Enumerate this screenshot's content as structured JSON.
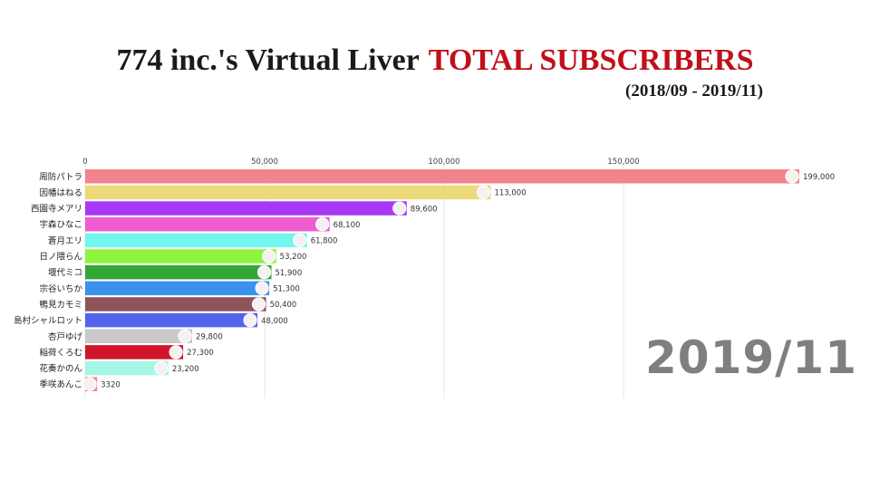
{
  "header": {
    "title_main": "774 inc.'s Virtual Liver",
    "title_accent": "TOTAL SUBSCRIBERS",
    "date_range": "(2018/09 - 2019/11)"
  },
  "period_label": "2019/11",
  "colors": {
    "accent": "#c0101a",
    "grid": "#e6e6e6",
    "period": "#7f7f7f"
  },
  "chart_data": {
    "type": "bar",
    "orientation": "horizontal",
    "xlim": [
      0,
      199000
    ],
    "ticks": [
      {
        "value": 0,
        "label": "0"
      },
      {
        "value": 50000,
        "label": "50,000"
      },
      {
        "value": 100000,
        "label": "100,000"
      },
      {
        "value": 150000,
        "label": "150,000"
      }
    ],
    "grid": true,
    "bars": [
      {
        "name": "周防パトラ",
        "value": 199000,
        "label": "199,000",
        "color": "#f0838c"
      },
      {
        "name": "因幡はねる",
        "value": 113000,
        "label": "113,000",
        "color": "#ecd97a"
      },
      {
        "name": "西園寺メアリ",
        "value": 89600,
        "label": "89,600",
        "color": "#a938f5"
      },
      {
        "name": "宇森ひなこ",
        "value": 68100,
        "label": "68,100",
        "color": "#ef5cd0"
      },
      {
        "name": "蒼月エリ",
        "value": 61800,
        "label": "61,800",
        "color": "#72f6f0"
      },
      {
        "name": "日ノ隈らん",
        "value": 53200,
        "label": "53,200",
        "color": "#8ef53e"
      },
      {
        "name": "堰代ミコ",
        "value": 51900,
        "label": "51,900",
        "color": "#33a636"
      },
      {
        "name": "宗谷いちか",
        "value": 51300,
        "label": "51,300",
        "color": "#3b92ec"
      },
      {
        "name": "鴨見カモミ",
        "value": 50400,
        "label": "50,400",
        "color": "#8e5459"
      },
      {
        "name": "島村シャルロット",
        "value": 48000,
        "label": "48,000",
        "color": "#5463ee"
      },
      {
        "name": "杏戸ゆげ",
        "value": 29800,
        "label": "29,800",
        "color": "#c9c9c9"
      },
      {
        "name": "稲荷くろむ",
        "value": 27300,
        "label": "27,300",
        "color": "#d0152b"
      },
      {
        "name": "花奏かのん",
        "value": 23200,
        "label": "23,200",
        "color": "#a6f6e4"
      },
      {
        "name": "季咲あんこ",
        "value": 3320,
        "label": "3320",
        "color": "#f0838c"
      }
    ]
  }
}
